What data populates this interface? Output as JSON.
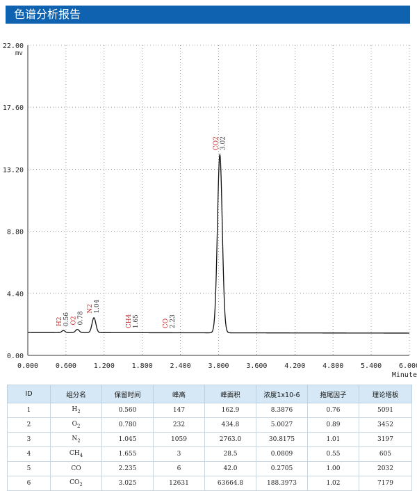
{
  "header": {
    "title": "色谱分析报告"
  },
  "chart_data": {
    "type": "line",
    "title": "",
    "xlabel": "Minute",
    "ylabel": "mv",
    "xlim": [
      0.0,
      6.0
    ],
    "ylim": [
      0.0,
      22.0
    ],
    "x_ticks": [
      "0.000",
      "0.600",
      "1.200",
      "1.800",
      "2.400",
      "3.000",
      "3.600",
      "4.200",
      "4.800",
      "5.400",
      "6.000"
    ],
    "y_ticks": [
      "0.00",
      "4.40",
      "8.80",
      "13.20",
      "17.60",
      "22.00"
    ],
    "grid": true,
    "baseline": 1.62,
    "peaks": [
      {
        "name": "H2",
        "rt": 0.56,
        "rt_label": "0.56",
        "height": 0.15
      },
      {
        "name": "O2",
        "rt": 0.78,
        "rt_label": "0.78",
        "height": 0.23
      },
      {
        "name": "N2",
        "rt": 1.04,
        "rt_label": "1.04",
        "height": 1.06
      },
      {
        "name": "CH4",
        "rt": 1.65,
        "rt_label": "1.65",
        "height": 0.0
      },
      {
        "name": "CO",
        "rt": 2.23,
        "rt_label": "2.23",
        "height": 0.0
      },
      {
        "name": "CO2",
        "rt": 3.02,
        "rt_label": "3.02",
        "height": 12.63
      }
    ],
    "colors": {
      "trace": "#111111",
      "peak_name": "#cc2222",
      "rt_label": "#333333",
      "grid": "#888888"
    }
  },
  "table": {
    "headers": [
      "ID",
      "组分名",
      "保留时间",
      "峰高",
      "峰面积",
      "浓度1x10-6",
      "拖尾因子",
      "理论塔板"
    ],
    "rows": [
      {
        "id": "1",
        "name": "H",
        "sub": "2",
        "rt": "0.560",
        "height": "147",
        "area": "162.9",
        "conc": "8.3876",
        "tail": "0.76",
        "plates": "5091"
      },
      {
        "id": "2",
        "name": "O",
        "sub": "2",
        "rt": "0.780",
        "height": "232",
        "area": "434.8",
        "conc": "5.0027",
        "tail": "0.89",
        "plates": "3452"
      },
      {
        "id": "3",
        "name": "N",
        "sub": "2",
        "rt": "1.045",
        "height": "1059",
        "area": "2763.0",
        "conc": "30.8175",
        "tail": "1.01",
        "plates": "3197"
      },
      {
        "id": "4",
        "name": "CH",
        "sub": "4",
        "rt": "1.655",
        "height": "3",
        "area": "28.5",
        "conc": "0.0809",
        "tail": "0.55",
        "plates": "605"
      },
      {
        "id": "5",
        "name": "CO",
        "sub": "",
        "rt": "2.235",
        "height": "6",
        "area": "42.0",
        "conc": "0.2705",
        "tail": "1.00",
        "plates": "2032"
      },
      {
        "id": "6",
        "name": "CO",
        "sub": "2",
        "rt": "3.025",
        "height": "12631",
        "area": "63664.8",
        "conc": "188.3973",
        "tail": "1.02",
        "plates": "7179"
      }
    ]
  }
}
